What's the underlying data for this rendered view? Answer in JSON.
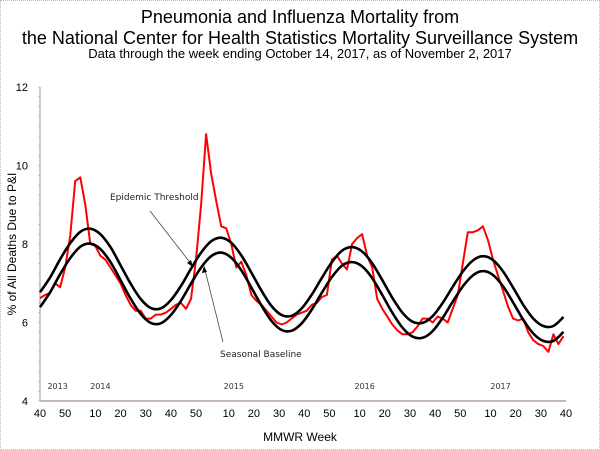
{
  "chart_data": {
    "type": "line",
    "title": "Pneumonia and Influenza Mortality from",
    "title_line2": "the National Center for Health Statistics Mortality Surveillance System",
    "subtitle": "Data through the week ending October 14, 2017, as of November 2, 2017",
    "xlabel": "MMWR Week",
    "ylabel": "% of All Deaths Due to P&I",
    "ylim": [
      4,
      12
    ],
    "y_ticks": [
      "4",
      "6",
      "8",
      "10",
      "12"
    ],
    "x_range": [
      {
        "year": 2013,
        "week": 40
      },
      {
        "year": 2017,
        "week": 40
      }
    ],
    "weeks_per_year": {
      "2013": 52,
      "2014": 53,
      "2015": 52,
      "2016": 52,
      "2017": 52
    },
    "x_ticks": [
      {
        "year": 2013,
        "week": 40,
        "label": "40"
      },
      {
        "year": 2013,
        "week": 50,
        "label": "50"
      },
      {
        "year": 2014,
        "week": 10,
        "label": "10"
      },
      {
        "year": 2014,
        "week": 20,
        "label": "20"
      },
      {
        "year": 2014,
        "week": 30,
        "label": "30"
      },
      {
        "year": 2014,
        "week": 40,
        "label": "40"
      },
      {
        "year": 2014,
        "week": 50,
        "label": "50"
      },
      {
        "year": 2015,
        "week": 10,
        "label": "10"
      },
      {
        "year": 2015,
        "week": 20,
        "label": "20"
      },
      {
        "year": 2015,
        "week": 30,
        "label": "30"
      },
      {
        "year": 2015,
        "week": 40,
        "label": "40"
      },
      {
        "year": 2015,
        "week": 50,
        "label": "50"
      },
      {
        "year": 2016,
        "week": 10,
        "label": "10"
      },
      {
        "year": 2016,
        "week": 20,
        "label": "20"
      },
      {
        "year": 2016,
        "week": 30,
        "label": "30"
      },
      {
        "year": 2016,
        "week": 40,
        "label": "40"
      },
      {
        "year": 2016,
        "week": 50,
        "label": "50"
      },
      {
        "year": 2017,
        "week": 10,
        "label": "10"
      },
      {
        "year": 2017,
        "week": 20,
        "label": "20"
      },
      {
        "year": 2017,
        "week": 30,
        "label": "30"
      },
      {
        "year": 2017,
        "week": 40,
        "label": "40"
      }
    ],
    "year_labels": [
      "2013",
      "2014",
      "2015",
      "2016",
      "2017"
    ],
    "grid": false,
    "legend": "none",
    "annotations": [
      "Epidemic Threshold",
      "Seasonal Baseline"
    ],
    "series": [
      {
        "color": "#ff0000",
        "start": {
          "year": 2013,
          "week": 40
        },
        "step_weeks": 2,
        "values": [
          6.62,
          6.7,
          6.75,
          7.0,
          6.9,
          7.4,
          8.2,
          9.6,
          9.7,
          9.0,
          8.0,
          7.95,
          7.7,
          7.6,
          7.4,
          7.2,
          7.0,
          6.7,
          6.45,
          6.3,
          6.3,
          6.1,
          6.1,
          6.2,
          6.2,
          6.25,
          6.35,
          6.45,
          6.5,
          6.35,
          6.6,
          7.6,
          9.0,
          10.8,
          9.8,
          9.1,
          8.45,
          8.4,
          8.0,
          7.4,
          7.55,
          7.2,
          6.7,
          6.55,
          6.45,
          6.3,
          6.15,
          6.0,
          5.95,
          6.0,
          6.1,
          6.2,
          6.25,
          6.3,
          6.45,
          6.5,
          6.65,
          6.7,
          7.6,
          7.7,
          7.5,
          7.35,
          8.0,
          8.15,
          8.25,
          7.7,
          7.4,
          6.6,
          6.35,
          6.15,
          5.95,
          5.8,
          5.7,
          5.7,
          5.75,
          5.9,
          6.1,
          6.1,
          6.0,
          6.15,
          6.1,
          6.0,
          6.35,
          6.7,
          7.5,
          8.3,
          8.3,
          8.35,
          8.45,
          8.1,
          7.6,
          7.2,
          6.8,
          6.4,
          6.1,
          6.05,
          6.1,
          5.75,
          5.55,
          5.45,
          5.4,
          5.25,
          5.7,
          5.45,
          5.65
        ]
      },
      {
        "name": "Seasonal Baseline",
        "color": "#000000",
        "start": {
          "year": 2013,
          "week": 40
        },
        "step_weeks": 4,
        "values": [
          6.39,
          6.77,
          7.23,
          7.64,
          7.93,
          8.01,
          7.87,
          7.54,
          7.08,
          6.61,
          6.22,
          5.99,
          5.98,
          6.19,
          6.55,
          6.99,
          7.4,
          7.69,
          7.78,
          7.65,
          7.33,
          6.89,
          6.43,
          6.04,
          5.81,
          5.79,
          5.98,
          6.33,
          6.76,
          7.16,
          7.45,
          7.54,
          7.43,
          7.13,
          6.7,
          6.25,
          5.87,
          5.64,
          5.61,
          5.78,
          6.12,
          6.53,
          6.92,
          7.2,
          7.31,
          7.21,
          6.92,
          6.51,
          6.07,
          5.72,
          5.53,
          5.53,
          5.76
        ]
      },
      {
        "name": "Epidemic Threshold",
        "color": "#000000",
        "start": {
          "year": 2013,
          "week": 40
        },
        "step_weeks": 4,
        "values": [
          6.77,
          7.15,
          7.61,
          8.02,
          8.31,
          8.39,
          8.25,
          7.92,
          7.46,
          6.99,
          6.6,
          6.37,
          6.36,
          6.57,
          6.93,
          7.37,
          7.78,
          8.07,
          8.16,
          8.03,
          7.71,
          7.27,
          6.81,
          6.42,
          6.19,
          6.17,
          6.36,
          6.71,
          7.14,
          7.54,
          7.83,
          7.92,
          7.81,
          7.51,
          7.08,
          6.63,
          6.25,
          6.02,
          5.99,
          6.16,
          6.5,
          6.91,
          7.3,
          7.58,
          7.69,
          7.59,
          7.3,
          6.89,
          6.45,
          6.1,
          5.91,
          5.91,
          6.14
        ]
      }
    ]
  }
}
